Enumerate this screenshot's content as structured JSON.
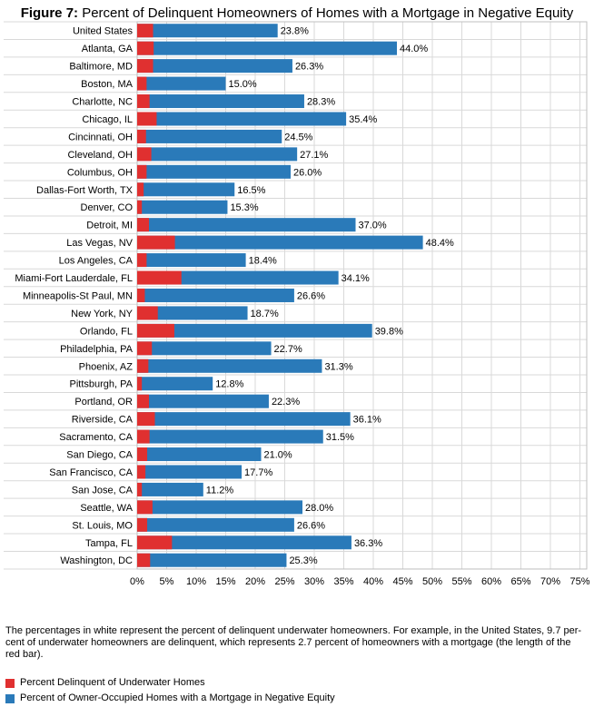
{
  "title_bold": "Figure 7:",
  "title_rest": " Percent of Delinquent Homeowners of Homes with a Mortgage in Negative Equity",
  "note": "The percentages in white represent the percent of delinquent underwater homeowners. For example, in the United States, 9.7 per-cent of underwater homeowners are delinquent, which represents 2.7 percent of homeowners with a mortgage (the length of the red bar).",
  "colors": {
    "red": "#e03030",
    "blue": "#2a7ab9",
    "grid": "#d9d9d9"
  },
  "chart_data": {
    "type": "bar",
    "orientation": "horizontal",
    "stacked": "overlay",
    "categories": [
      "United States",
      "Atlanta, GA",
      "Baltimore, MD",
      "Boston, MA",
      "Charlotte, NC",
      "Chicago, IL",
      "Cincinnati, OH",
      "Cleveland, OH",
      "Columbus, OH",
      "Dallas-Fort Worth, TX",
      "Denver, CO",
      "Detroit, MI",
      "Las Vegas, NV",
      "Los Angeles, CA",
      "Miami-Fort Lauderdale, FL",
      "Minneapolis-St Paul, MN",
      "New York, NY",
      "Orlando, FL",
      "Philadelphia, PA",
      "Phoenix, AZ",
      "Pittsburgh, PA",
      "Portland, OR",
      "Riverside, CA",
      "Sacramento, CA",
      "San Diego, CA",
      "San Francisco, CA",
      "San Jose, CA",
      "Seattle, WA",
      "St. Louis, MO",
      "Tampa, FL",
      "Washington, DC"
    ],
    "series": [
      {
        "name": "Percent of Owner-Occupied Homes with a Mortgage in Negative Equity",
        "color": "#2a7ab9",
        "values": [
          23.8,
          44.0,
          26.3,
          15.0,
          28.3,
          35.4,
          24.5,
          27.1,
          26.0,
          16.5,
          15.3,
          37.0,
          48.4,
          18.4,
          34.1,
          26.6,
          18.7,
          39.8,
          22.7,
          31.3,
          12.8,
          22.3,
          36.1,
          31.5,
          21.0,
          17.7,
          11.2,
          28.0,
          26.6,
          36.3,
          25.3
        ],
        "labels": [
          "23.8%",
          "44.0%",
          "26.3%",
          "15.0%",
          "28.3%",
          "35.4%",
          "24.5%",
          "27.1%",
          "26.0%",
          "16.5%",
          "15.3%",
          "37.0%",
          "48.4%",
          "18.4%",
          "34.1%",
          "26.6%",
          "18.7%",
          "39.8%",
          "22.7%",
          "31.3%",
          "12.8%",
          "22.3%",
          "36.1%",
          "31.5%",
          "21.0%",
          "17.7%",
          "11.2%",
          "28.0%",
          "26.6%",
          "36.3%",
          "25.3%"
        ]
      },
      {
        "name": "Percent Delinquent of Underwater Homes",
        "color": "#e03030",
        "values": [
          2.7,
          2.8,
          2.7,
          1.6,
          2.1,
          3.3,
          1.5,
          2.4,
          1.6,
          1.1,
          0.8,
          2.0,
          6.4,
          1.6,
          7.5,
          1.3,
          3.5,
          6.3,
          2.5,
          1.9,
          0.8,
          2.0,
          3.0,
          2.1,
          1.7,
          1.4,
          0.8,
          2.6,
          1.7,
          5.9,
          2.2
        ]
      }
    ],
    "xlim": [
      0,
      75
    ],
    "xticks": [
      0,
      5,
      10,
      15,
      20,
      25,
      30,
      35,
      40,
      45,
      50,
      55,
      60,
      65,
      70,
      75
    ],
    "xtick_labels": [
      "0%",
      "5%",
      "10%",
      "15%",
      "20%",
      "25%",
      "30%",
      "35%",
      "40%",
      "45%",
      "50%",
      "55%",
      "60%",
      "65%",
      "70%",
      "75%"
    ],
    "grid": true,
    "legend_position": "bottom-left"
  }
}
